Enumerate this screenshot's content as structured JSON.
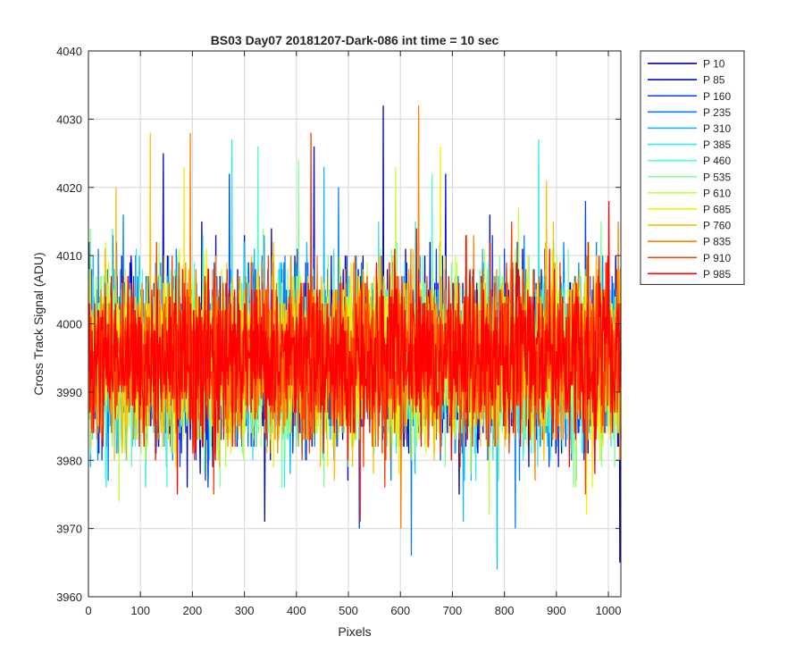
{
  "chart_data": {
    "type": "line",
    "title": "BS03 Day07 20181207-Dark-086 int time = 10 sec",
    "xlabel": "Pixels",
    "ylabel": "Cross Track Signal (ADU)",
    "xlim": [
      0,
      1024
    ],
    "ylim": [
      3960,
      4040
    ],
    "x_ticks": [
      0,
      100,
      200,
      300,
      400,
      500,
      600,
      700,
      800,
      900,
      1000
    ],
    "y_ticks": [
      3960,
      3970,
      3980,
      3990,
      4000,
      4010,
      4020,
      4030,
      4040
    ],
    "grid": true,
    "legend_position": "outside-top-right",
    "x_points": 1024,
    "noise": {
      "mean": 3995,
      "std": 6,
      "seed": 7
    },
    "series": [
      {
        "name": "P 10",
        "color": "#0000b4",
        "spikes": [
          [
            566,
            4032
          ],
          [
            1021,
            3965
          ],
          [
            338,
            3971
          ]
        ]
      },
      {
        "name": "P 85",
        "color": "#0008d6",
        "spikes": [
          [
            143,
            4025
          ],
          [
            433,
            4026
          ],
          [
            686,
            4022
          ]
        ]
      },
      {
        "name": "P 160",
        "color": "#0040ff",
        "spikes": [
          [
            520,
            3970
          ],
          [
            270,
            4022
          ],
          [
            955,
            4018
          ]
        ]
      },
      {
        "name": "P 235",
        "color": "#0080ff",
        "spikes": [
          [
            620,
            3966
          ],
          [
            820,
            3970
          ],
          [
            480,
            4020
          ]
        ]
      },
      {
        "name": "P 310",
        "color": "#10b8ff",
        "spikes": [
          [
            785,
            3964
          ],
          [
            452,
            4023
          ],
          [
            720,
            3971
          ]
        ]
      },
      {
        "name": "P 385",
        "color": "#30e8f0",
        "spikes": [
          [
            275,
            4027
          ],
          [
            865,
            4027
          ],
          [
            33,
            3976
          ]
        ]
      },
      {
        "name": "P 460",
        "color": "#50ffc8",
        "spikes": [
          [
            325,
            4026
          ],
          [
            150,
            3976
          ],
          [
            660,
            4022
          ]
        ]
      },
      {
        "name": "P 535",
        "color": "#80ff98",
        "spikes": [
          [
            403,
            4024
          ],
          [
            252,
            3976
          ],
          [
            985,
            4015
          ]
        ]
      },
      {
        "name": "P 610",
        "color": "#c0ff40",
        "spikes": [
          [
            58,
            3974
          ],
          [
            590,
            4023
          ],
          [
            770,
            3972
          ]
        ]
      },
      {
        "name": "P 685",
        "color": "#f0f000",
        "spikes": [
          [
            183,
            4023
          ],
          [
            676,
            4026
          ],
          [
            957,
            3972
          ]
        ]
      },
      {
        "name": "P 760",
        "color": "#ffbe00",
        "spikes": [
          [
            118,
            4028
          ],
          [
            52,
            4020
          ],
          [
            880,
            4021
          ]
        ]
      },
      {
        "name": "P 835",
        "color": "#ff8000",
        "spikes": [
          [
            195,
            4028
          ],
          [
            634,
            4032
          ],
          [
            600,
            3970
          ]
        ]
      },
      {
        "name": "P 910",
        "color": "#ff3c00",
        "spikes": [
          [
            427,
            4028
          ],
          [
            522,
            3971
          ],
          [
            240,
            3975
          ]
        ]
      },
      {
        "name": "P 985",
        "color": "#ff0000",
        "spikes": [
          [
            1000,
            4018
          ],
          [
            170,
            3975
          ],
          [
            960,
            4012
          ]
        ]
      }
    ]
  }
}
